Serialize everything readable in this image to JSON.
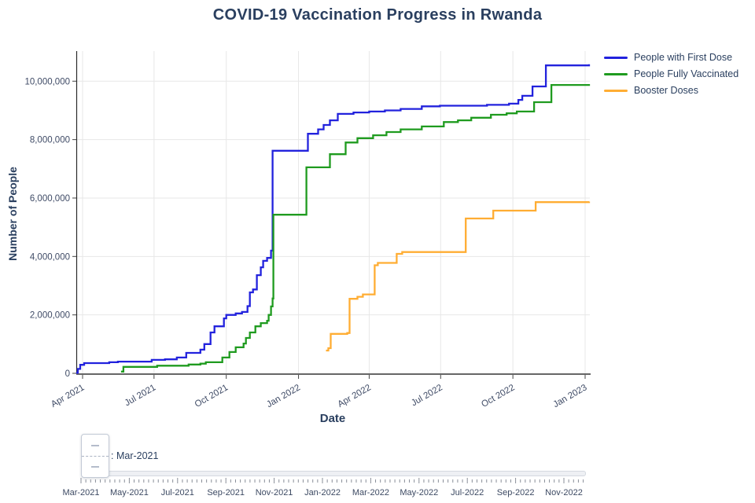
{
  "title": {
    "text": "COVID-19 Vaccination Progress in Rwanda"
  },
  "axes": {
    "x_title": "Date",
    "y_title": "Number of People",
    "x_ticks": [
      {
        "date": "2021-04-01",
        "label": "Apr 2021"
      },
      {
        "date": "2021-07-01",
        "label": "Jul 2021"
      },
      {
        "date": "2021-10-01",
        "label": "Oct 2021"
      },
      {
        "date": "2022-01-01",
        "label": "Jan 2022"
      },
      {
        "date": "2022-04-01",
        "label": "Apr 2022"
      },
      {
        "date": "2022-07-01",
        "label": "Jul 2022"
      },
      {
        "date": "2022-10-01",
        "label": "Oct 2022"
      },
      {
        "date": "2023-01-01",
        "label": "Jan 2023"
      }
    ],
    "y_ticks": [
      {
        "value": 0,
        "label": "0"
      },
      {
        "value": 2000000,
        "label": "2,000,000"
      },
      {
        "value": 4000000,
        "label": "4,000,000"
      },
      {
        "value": 6000000,
        "label": "6,000,000"
      },
      {
        "value": 8000000,
        "label": "8,000,000"
      },
      {
        "value": 10000000,
        "label": "10,000,000"
      }
    ]
  },
  "legend": {
    "items": [
      {
        "label": "People with First Dose",
        "color": "#2222dd"
      },
      {
        "label": "People Fully Vaccinated",
        "color": "#1f9b1f"
      },
      {
        "label": "Booster Doses",
        "color": "#ffad33"
      }
    ]
  },
  "chart_data": {
    "type": "line",
    "step": "hv",
    "title": "COVID-19 Vaccination Progress in Rwanda",
    "xlabel": "Date",
    "ylabel": "Number of People",
    "x_domain": [
      "2021-03-24",
      "2023-01-07"
    ],
    "ylim": [
      0,
      11030000
    ],
    "grid": true,
    "legend_position": "top-right",
    "series": [
      {
        "name": "People with First Dose",
        "color": "#2222dd",
        "points": [
          [
            "2021-03-24",
            20000
          ],
          [
            "2021-03-26",
            150000
          ],
          [
            "2021-03-29",
            290000
          ],
          [
            "2021-04-03",
            350000
          ],
          [
            "2021-05-05",
            380000
          ],
          [
            "2021-05-16",
            400000
          ],
          [
            "2021-06-28",
            460000
          ],
          [
            "2021-07-15",
            480000
          ],
          [
            "2021-07-30",
            540000
          ],
          [
            "2021-08-11",
            700000
          ],
          [
            "2021-08-29",
            810000
          ],
          [
            "2021-09-03",
            1000000
          ],
          [
            "2021-09-11",
            1400000
          ],
          [
            "2021-09-16",
            1610000
          ],
          [
            "2021-09-28",
            1880000
          ],
          [
            "2021-10-01",
            2000000
          ],
          [
            "2021-10-13",
            2050000
          ],
          [
            "2021-10-21",
            2100000
          ],
          [
            "2021-10-28",
            2300000
          ],
          [
            "2021-10-31",
            2770000
          ],
          [
            "2021-11-04",
            2870000
          ],
          [
            "2021-11-09",
            3360000
          ],
          [
            "2021-11-14",
            3630000
          ],
          [
            "2021-11-17",
            3850000
          ],
          [
            "2021-11-22",
            3950000
          ],
          [
            "2021-11-27",
            4200000
          ],
          [
            "2021-11-29",
            7620000
          ],
          [
            "2022-01-13",
            8200000
          ],
          [
            "2022-01-26",
            8350000
          ],
          [
            "2022-02-02",
            8500000
          ],
          [
            "2022-02-10",
            8660000
          ],
          [
            "2022-02-20",
            8880000
          ],
          [
            "2022-03-12",
            8930000
          ],
          [
            "2022-04-01",
            8960000
          ],
          [
            "2022-04-21",
            9000000
          ],
          [
            "2022-05-11",
            9050000
          ],
          [
            "2022-06-07",
            9140000
          ],
          [
            "2022-06-30",
            9160000
          ],
          [
            "2022-08-29",
            9190000
          ],
          [
            "2022-09-26",
            9230000
          ],
          [
            "2022-10-08",
            9360000
          ],
          [
            "2022-10-13",
            9500000
          ],
          [
            "2022-10-26",
            9820000
          ],
          [
            "2022-11-12",
            10540000
          ],
          [
            "2023-01-06",
            10580000
          ]
        ]
      },
      {
        "name": "People Fully Vaccinated",
        "color": "#1f9b1f",
        "points": [
          [
            "2021-05-20",
            60000
          ],
          [
            "2021-05-23",
            220000
          ],
          [
            "2021-07-05",
            260000
          ],
          [
            "2021-08-14",
            300000
          ],
          [
            "2021-08-29",
            330000
          ],
          [
            "2021-09-05",
            380000
          ],
          [
            "2021-09-26",
            540000
          ],
          [
            "2021-10-05",
            730000
          ],
          [
            "2021-10-13",
            890000
          ],
          [
            "2021-10-23",
            1020000
          ],
          [
            "2021-10-26",
            1210000
          ],
          [
            "2021-10-31",
            1400000
          ],
          [
            "2021-11-07",
            1610000
          ],
          [
            "2021-11-14",
            1720000
          ],
          [
            "2021-11-22",
            1800000
          ],
          [
            "2021-11-24",
            2000000
          ],
          [
            "2021-11-27",
            2290000
          ],
          [
            "2021-11-29",
            2560000
          ],
          [
            "2021-11-30",
            5430000
          ],
          [
            "2022-01-11",
            7050000
          ],
          [
            "2022-02-10",
            7500000
          ],
          [
            "2022-03-02",
            7900000
          ],
          [
            "2022-03-17",
            8050000
          ],
          [
            "2022-04-06",
            8150000
          ],
          [
            "2022-04-23",
            8260000
          ],
          [
            "2022-05-11",
            8350000
          ],
          [
            "2022-06-07",
            8450000
          ],
          [
            "2022-07-05",
            8600000
          ],
          [
            "2022-07-23",
            8660000
          ],
          [
            "2022-08-09",
            8750000
          ],
          [
            "2022-09-03",
            8850000
          ],
          [
            "2022-09-23",
            8900000
          ],
          [
            "2022-10-06",
            8960000
          ],
          [
            "2022-10-28",
            9280000
          ],
          [
            "2022-11-19",
            9870000
          ],
          [
            "2023-01-06",
            9900000
          ]
        ]
      },
      {
        "name": "Booster Doses",
        "color": "#ffad33",
        "points": [
          [
            "2022-02-05",
            780000
          ],
          [
            "2022-02-08",
            860000
          ],
          [
            "2022-02-11",
            1350000
          ],
          [
            "2022-03-04",
            1380000
          ],
          [
            "2022-03-07",
            2550000
          ],
          [
            "2022-03-17",
            2620000
          ],
          [
            "2022-03-24",
            2700000
          ],
          [
            "2022-04-08",
            3700000
          ],
          [
            "2022-04-12",
            3780000
          ],
          [
            "2022-05-06",
            4090000
          ],
          [
            "2022-05-13",
            4150000
          ],
          [
            "2022-08-02",
            5300000
          ],
          [
            "2022-09-06",
            5570000
          ],
          [
            "2022-10-30",
            5860000
          ],
          [
            "2023-01-06",
            5880000
          ]
        ]
      }
    ]
  },
  "slider": {
    "prefix": ":",
    "value": "Mar-2021",
    "tick_labels": [
      "Mar-2021",
      "May-2021",
      "Jul-2021",
      "Sep-2021",
      "Nov-2021",
      "Jan-2022",
      "Mar-2022",
      "May-2022",
      "Jul-2022",
      "Sep-2022",
      "Nov-2022"
    ]
  }
}
